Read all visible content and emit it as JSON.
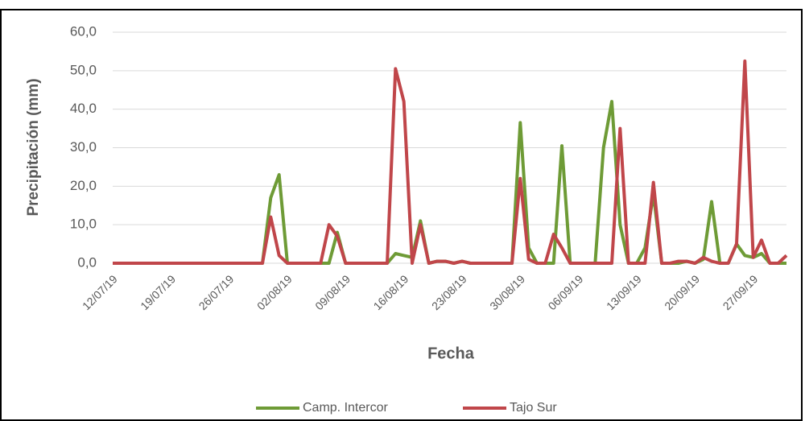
{
  "chart_data": {
    "type": "line",
    "x_label": "Fecha",
    "y_label": "Precipitación (mm)",
    "categories": [
      "12/07/19",
      null,
      null,
      null,
      null,
      null,
      null,
      "19/07/19",
      null,
      null,
      null,
      null,
      null,
      null,
      "26/07/19",
      null,
      null,
      null,
      null,
      null,
      null,
      "02/08/19",
      null,
      null,
      null,
      null,
      null,
      null,
      "09/08/19",
      null,
      null,
      null,
      null,
      null,
      null,
      "16/08/19",
      null,
      null,
      null,
      null,
      null,
      null,
      "23/08/19",
      null,
      null,
      null,
      null,
      null,
      null,
      "30/08/19",
      null,
      null,
      null,
      null,
      null,
      null,
      "06/09/19",
      null,
      null,
      null,
      null,
      null,
      null,
      "13/09/19",
      null,
      null,
      null,
      null,
      null,
      null,
      "20/09/19",
      null,
      null,
      null,
      null,
      null,
      null,
      "27/09/19",
      null,
      null,
      null,
      null
    ],
    "series": [
      {
        "name": "Camp. Intercor",
        "color": "#6e9b36",
        "values": [
          0,
          0,
          0,
          0,
          0,
          0,
          0,
          0,
          0,
          0,
          0,
          0,
          0,
          0,
          0,
          0,
          0,
          0,
          0,
          17,
          23,
          0,
          0,
          0,
          0,
          0,
          0,
          8,
          0,
          0,
          0,
          0,
          0,
          0,
          2.5,
          2,
          1.5,
          11,
          0,
          0.5,
          0.5,
          0,
          0.5,
          0,
          0,
          0,
          0,
          0,
          0,
          36.5,
          4,
          0,
          0,
          0,
          30.5,
          0,
          0,
          0,
          0,
          30,
          42,
          10,
          0,
          0,
          4,
          18,
          0,
          0,
          0,
          0.5,
          0,
          1,
          16,
          0,
          0,
          5,
          2,
          1.5,
          2.5,
          0,
          0,
          0
        ]
      },
      {
        "name": "Tajo Sur",
        "color": "#c0464a",
        "values": [
          0,
          0,
          0,
          0,
          0,
          0,
          0,
          0,
          0,
          0,
          0,
          0,
          0,
          0,
          0,
          0,
          0,
          0,
          0,
          12,
          2,
          0,
          0,
          0,
          0,
          0,
          10,
          7,
          0,
          0,
          0,
          0,
          0,
          0,
          50.5,
          42,
          0,
          10,
          0,
          0.5,
          0.5,
          0,
          0.5,
          0,
          0,
          0,
          0,
          0,
          0,
          22,
          1,
          0,
          0,
          7.5,
          4,
          0,
          0,
          0,
          0,
          0,
          0,
          35,
          0,
          0,
          0,
          21,
          0,
          0,
          0.5,
          0.5,
          0,
          1.5,
          0.5,
          0,
          0,
          5,
          52.5,
          1.5,
          6,
          0,
          0,
          2
        ]
      }
    ],
    "ylim": [
      0,
      60
    ],
    "yticks": [
      {
        "value": 0,
        "label": "0,0"
      },
      {
        "value": 10,
        "label": "10,0"
      },
      {
        "value": 20,
        "label": "20,0"
      },
      {
        "value": 30,
        "label": "30,0"
      },
      {
        "value": 40,
        "label": "40,0"
      },
      {
        "value": 50,
        "label": "50,0"
      },
      {
        "value": 60,
        "label": "60,0"
      }
    ],
    "grid": true,
    "legend": "bottom"
  }
}
